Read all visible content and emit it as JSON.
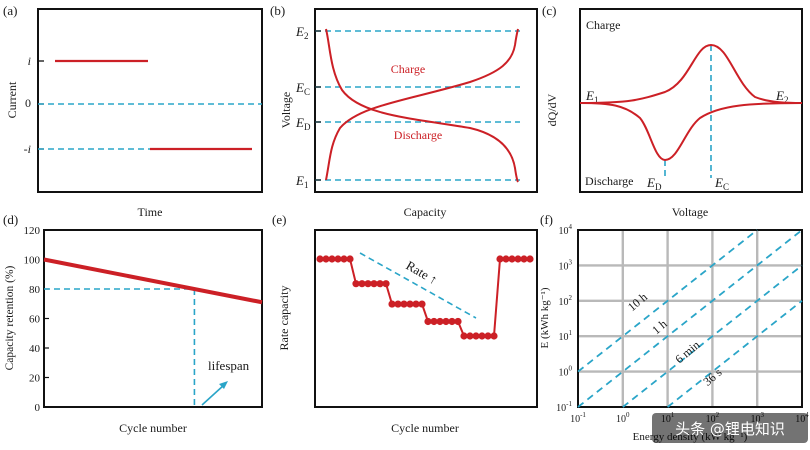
{
  "colors": {
    "curve": "#cc2026",
    "guide": "#2aa5c8",
    "axis": "#111111",
    "grid": "#b9b9b9",
    "marker": "#cc2026"
  },
  "watermark": {
    "text": "头条 @锂电知识"
  },
  "chart_data": [
    {
      "id": "a",
      "panel_label": "(a)",
      "type": "line",
      "title": "",
      "xlabel": "Time",
      "ylabel": "Current",
      "ytick_labels": [
        "i",
        "0",
        "-i"
      ],
      "series": [
        {
          "name": "charge current",
          "x": [
            0.12,
            0.5
          ],
          "y": [
            1,
            1
          ]
        },
        {
          "name": "discharge current",
          "x": [
            0.5,
            0.92
          ],
          "y": [
            -1,
            -1
          ]
        }
      ],
      "guides": [
        {
          "orientation": "horizontal",
          "y": 0
        },
        {
          "orientation": "horizontal",
          "y": -1
        }
      ]
    },
    {
      "id": "b",
      "panel_label": "(b)",
      "type": "line",
      "xlabel": "Capacity",
      "ylabel": "Voltage",
      "ytick_labels": [
        "E2",
        "EC",
        "ED",
        "E1"
      ],
      "annotations": [
        "Charge",
        "Discharge"
      ],
      "series": [
        {
          "name": "Charge",
          "description": "voltage rises from E1 to E2 with capacity, plateau near EC"
        },
        {
          "name": "Discharge",
          "description": "voltage falls from E2 to E1 with capacity, plateau near ED"
        }
      ]
    },
    {
      "id": "c",
      "panel_label": "(c)",
      "type": "line",
      "xlabel": "Voltage",
      "ylabel": "dQ/dV",
      "annotations": [
        "Charge",
        "Discharge",
        "E1",
        "E2",
        "ED",
        "EC"
      ],
      "series": [
        {
          "name": "Charge",
          "description": "positive peak centred at EC"
        },
        {
          "name": "Discharge",
          "description": "negative peak centred at ED"
        }
      ]
    },
    {
      "id": "d",
      "panel_label": "(d)",
      "type": "line",
      "xlabel": "Cycle number",
      "ylabel": "Capacity retention (%)",
      "ylim": [
        0,
        120
      ],
      "yticks": [
        0,
        20,
        40,
        60,
        80,
        100,
        120
      ],
      "xlim": [
        0,
        100
      ],
      "series": [
        {
          "name": "retention",
          "x": [
            0,
            100
          ],
          "y": [
            100,
            71
          ]
        }
      ],
      "guides": [
        {
          "orientation": "horizontal",
          "y": 80
        },
        {
          "orientation": "vertical",
          "x": 69
        }
      ],
      "annotations": [
        "lifespan"
      ]
    },
    {
      "id": "e",
      "panel_label": "(e)",
      "type": "scatter",
      "xlabel": "Cycle number",
      "ylabel": "Rate capacity",
      "annotations": [
        "Rate ↑"
      ],
      "steps": [
        {
          "x": [
            1,
            2,
            3,
            4,
            5,
            6
          ],
          "y": 100
        },
        {
          "x": [
            7,
            8,
            9,
            10,
            11,
            12
          ],
          "y": 83
        },
        {
          "x": [
            13,
            14,
            15,
            16,
            17,
            18
          ],
          "y": 69
        },
        {
          "x": [
            19,
            20,
            21,
            22,
            23,
            24
          ],
          "y": 57
        },
        {
          "x": [
            25,
            26,
            27,
            28,
            29,
            30
          ],
          "y": 47
        },
        {
          "x": [
            31,
            32,
            33,
            34,
            35,
            36
          ],
          "y": 100
        }
      ]
    },
    {
      "id": "f",
      "panel_label": "(f)",
      "type": "line",
      "title": "",
      "xlabel": "Energy density (kW kg⁻¹)",
      "ylabel": "E (kWh kg⁻¹)",
      "xscale": "log",
      "yscale": "log",
      "xlim": [
        0.1,
        10000
      ],
      "ylim": [
        0.1,
        10000
      ],
      "tick_base": "10",
      "tick_exponents": [
        "-1",
        "0",
        "1",
        "2",
        "3",
        "4"
      ],
      "series": [
        {
          "name": "10 h",
          "ratio": 10
        },
        {
          "name": "1 h",
          "ratio": 1
        },
        {
          "name": "6 min",
          "ratio": 0.1
        },
        {
          "name": "36 s",
          "ratio": 0.01
        }
      ],
      "grid": true
    }
  ]
}
